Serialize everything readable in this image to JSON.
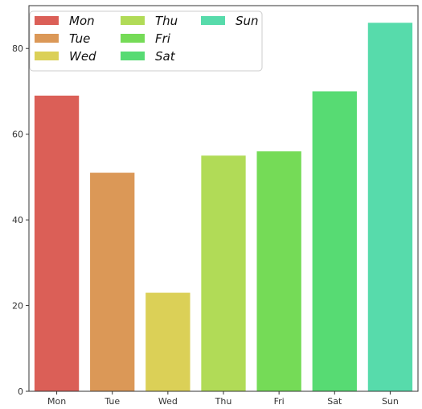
{
  "chart_data": {
    "type": "bar",
    "title": "",
    "xlabel": "",
    "ylabel": "",
    "categories": [
      "Mon",
      "Tue",
      "Wed",
      "Thu",
      "Fri",
      "Sat",
      "Sun"
    ],
    "values": [
      69,
      51,
      23,
      55,
      56,
      70,
      86
    ],
    "colors": [
      "#db5f57",
      "#db9857",
      "#dbd057",
      "#b1db57",
      "#75db57",
      "#57db73",
      "#57dbab"
    ],
    "ylim": [
      0,
      90
    ],
    "yticks": [
      0,
      20,
      40,
      60,
      80
    ],
    "grid": false,
    "legend": {
      "placement": "top-left",
      "columns": 3,
      "entries": [
        "Mon",
        "Tue",
        "Wed",
        "Thu",
        "Fri",
        "Sat",
        "Sun"
      ]
    }
  }
}
